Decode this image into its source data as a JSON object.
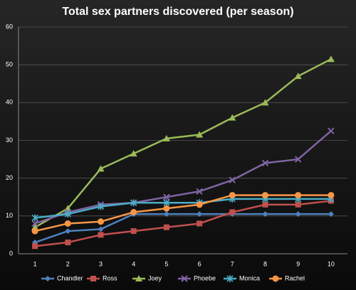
{
  "chart_data": {
    "type": "line",
    "title": "Total sex partners discovered (per season)",
    "categories": [
      "1",
      "2",
      "3",
      "4",
      "5",
      "6",
      "7",
      "8",
      "9",
      "10"
    ],
    "ylim": [
      0,
      60
    ],
    "yticks": [
      0,
      10,
      20,
      30,
      40,
      50,
      60
    ],
    "grid": true,
    "legend": "bottom",
    "series": [
      {
        "name": "Chandler",
        "color": "#4f81bd",
        "marker": "diamond",
        "values": [
          3,
          6,
          6.5,
          10.5,
          10.5,
          10.5,
          10.5,
          10.5,
          10.5,
          10.5
        ]
      },
      {
        "name": "Ross",
        "color": "#c0504d",
        "marker": "square",
        "values": [
          2,
          3,
          5,
          6,
          7,
          8,
          11,
          13,
          13,
          14
        ]
      },
      {
        "name": "Joey",
        "color": "#9bbb59",
        "marker": "triangle",
        "values": [
          7,
          12,
          22.5,
          26.5,
          30.5,
          31.5,
          36,
          40,
          47,
          51.5
        ]
      },
      {
        "name": "Phoebe",
        "color": "#8064a2",
        "marker": "x",
        "values": [
          8,
          11,
          13,
          13.5,
          15,
          16.5,
          19.5,
          24,
          25,
          32.5
        ]
      },
      {
        "name": "Monica",
        "color": "#4bacc6",
        "marker": "star",
        "values": [
          9.5,
          10.5,
          12.5,
          13.5,
          13.5,
          13.5,
          14.5,
          14.5,
          14.5,
          14.5
        ]
      },
      {
        "name": "Rachel",
        "color": "#f79646",
        "marker": "circle",
        "values": [
          6,
          8,
          8.5,
          11,
          12,
          13,
          15.5,
          15.5,
          15.5,
          15.5
        ]
      }
    ]
  }
}
